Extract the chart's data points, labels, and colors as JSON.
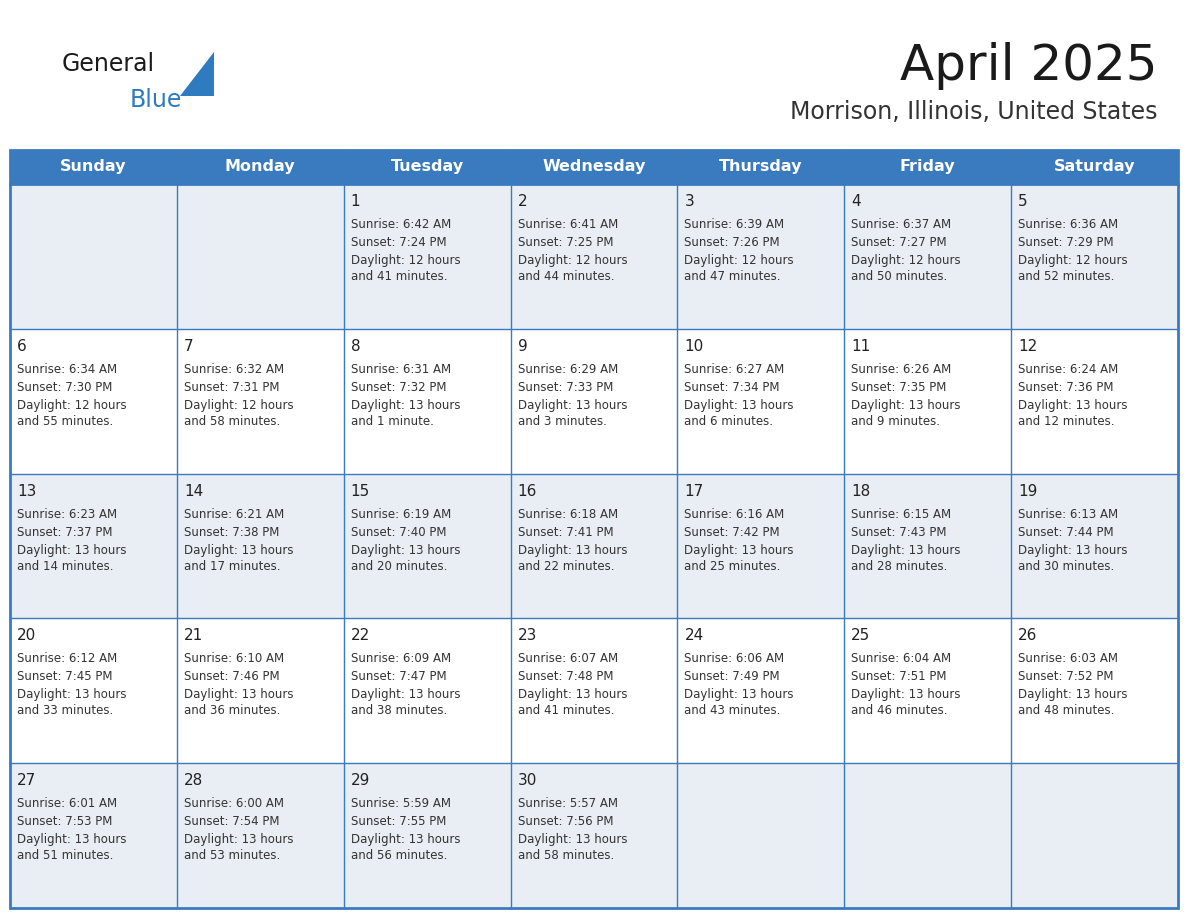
{
  "title": "April 2025",
  "subtitle": "Morrison, Illinois, United States",
  "header_bg": "#3a7abf",
  "header_text_color": "#ffffff",
  "cell_bg_odd": "#e8eef4",
  "cell_bg_even": "#ffffff",
  "border_color": "#3a7abf",
  "day_names": [
    "Sunday",
    "Monday",
    "Tuesday",
    "Wednesday",
    "Thursday",
    "Friday",
    "Saturday"
  ],
  "title_color": "#1a1a1a",
  "subtitle_color": "#333333",
  "logo_general_color": "#1a1a1a",
  "logo_blue_color": "#2e7bbf",
  "weeks": [
    [
      {
        "day": "",
        "sunrise": "",
        "sunset": "",
        "daylight": ""
      },
      {
        "day": "",
        "sunrise": "",
        "sunset": "",
        "daylight": ""
      },
      {
        "day": "1",
        "sunrise": "Sunrise: 6:42 AM",
        "sunset": "Sunset: 7:24 PM",
        "daylight": "Daylight: 12 hours\nand 41 minutes."
      },
      {
        "day": "2",
        "sunrise": "Sunrise: 6:41 AM",
        "sunset": "Sunset: 7:25 PM",
        "daylight": "Daylight: 12 hours\nand 44 minutes."
      },
      {
        "day": "3",
        "sunrise": "Sunrise: 6:39 AM",
        "sunset": "Sunset: 7:26 PM",
        "daylight": "Daylight: 12 hours\nand 47 minutes."
      },
      {
        "day": "4",
        "sunrise": "Sunrise: 6:37 AM",
        "sunset": "Sunset: 7:27 PM",
        "daylight": "Daylight: 12 hours\nand 50 minutes."
      },
      {
        "day": "5",
        "sunrise": "Sunrise: 6:36 AM",
        "sunset": "Sunset: 7:29 PM",
        "daylight": "Daylight: 12 hours\nand 52 minutes."
      }
    ],
    [
      {
        "day": "6",
        "sunrise": "Sunrise: 6:34 AM",
        "sunset": "Sunset: 7:30 PM",
        "daylight": "Daylight: 12 hours\nand 55 minutes."
      },
      {
        "day": "7",
        "sunrise": "Sunrise: 6:32 AM",
        "sunset": "Sunset: 7:31 PM",
        "daylight": "Daylight: 12 hours\nand 58 minutes."
      },
      {
        "day": "8",
        "sunrise": "Sunrise: 6:31 AM",
        "sunset": "Sunset: 7:32 PM",
        "daylight": "Daylight: 13 hours\nand 1 minute."
      },
      {
        "day": "9",
        "sunrise": "Sunrise: 6:29 AM",
        "sunset": "Sunset: 7:33 PM",
        "daylight": "Daylight: 13 hours\nand 3 minutes."
      },
      {
        "day": "10",
        "sunrise": "Sunrise: 6:27 AM",
        "sunset": "Sunset: 7:34 PM",
        "daylight": "Daylight: 13 hours\nand 6 minutes."
      },
      {
        "day": "11",
        "sunrise": "Sunrise: 6:26 AM",
        "sunset": "Sunset: 7:35 PM",
        "daylight": "Daylight: 13 hours\nand 9 minutes."
      },
      {
        "day": "12",
        "sunrise": "Sunrise: 6:24 AM",
        "sunset": "Sunset: 7:36 PM",
        "daylight": "Daylight: 13 hours\nand 12 minutes."
      }
    ],
    [
      {
        "day": "13",
        "sunrise": "Sunrise: 6:23 AM",
        "sunset": "Sunset: 7:37 PM",
        "daylight": "Daylight: 13 hours\nand 14 minutes."
      },
      {
        "day": "14",
        "sunrise": "Sunrise: 6:21 AM",
        "sunset": "Sunset: 7:38 PM",
        "daylight": "Daylight: 13 hours\nand 17 minutes."
      },
      {
        "day": "15",
        "sunrise": "Sunrise: 6:19 AM",
        "sunset": "Sunset: 7:40 PM",
        "daylight": "Daylight: 13 hours\nand 20 minutes."
      },
      {
        "day": "16",
        "sunrise": "Sunrise: 6:18 AM",
        "sunset": "Sunset: 7:41 PM",
        "daylight": "Daylight: 13 hours\nand 22 minutes."
      },
      {
        "day": "17",
        "sunrise": "Sunrise: 6:16 AM",
        "sunset": "Sunset: 7:42 PM",
        "daylight": "Daylight: 13 hours\nand 25 minutes."
      },
      {
        "day": "18",
        "sunrise": "Sunrise: 6:15 AM",
        "sunset": "Sunset: 7:43 PM",
        "daylight": "Daylight: 13 hours\nand 28 minutes."
      },
      {
        "day": "19",
        "sunrise": "Sunrise: 6:13 AM",
        "sunset": "Sunset: 7:44 PM",
        "daylight": "Daylight: 13 hours\nand 30 minutes."
      }
    ],
    [
      {
        "day": "20",
        "sunrise": "Sunrise: 6:12 AM",
        "sunset": "Sunset: 7:45 PM",
        "daylight": "Daylight: 13 hours\nand 33 minutes."
      },
      {
        "day": "21",
        "sunrise": "Sunrise: 6:10 AM",
        "sunset": "Sunset: 7:46 PM",
        "daylight": "Daylight: 13 hours\nand 36 minutes."
      },
      {
        "day": "22",
        "sunrise": "Sunrise: 6:09 AM",
        "sunset": "Sunset: 7:47 PM",
        "daylight": "Daylight: 13 hours\nand 38 minutes."
      },
      {
        "day": "23",
        "sunrise": "Sunrise: 6:07 AM",
        "sunset": "Sunset: 7:48 PM",
        "daylight": "Daylight: 13 hours\nand 41 minutes."
      },
      {
        "day": "24",
        "sunrise": "Sunrise: 6:06 AM",
        "sunset": "Sunset: 7:49 PM",
        "daylight": "Daylight: 13 hours\nand 43 minutes."
      },
      {
        "day": "25",
        "sunrise": "Sunrise: 6:04 AM",
        "sunset": "Sunset: 7:51 PM",
        "daylight": "Daylight: 13 hours\nand 46 minutes."
      },
      {
        "day": "26",
        "sunrise": "Sunrise: 6:03 AM",
        "sunset": "Sunset: 7:52 PM",
        "daylight": "Daylight: 13 hours\nand 48 minutes."
      }
    ],
    [
      {
        "day": "27",
        "sunrise": "Sunrise: 6:01 AM",
        "sunset": "Sunset: 7:53 PM",
        "daylight": "Daylight: 13 hours\nand 51 minutes."
      },
      {
        "day": "28",
        "sunrise": "Sunrise: 6:00 AM",
        "sunset": "Sunset: 7:54 PM",
        "daylight": "Daylight: 13 hours\nand 53 minutes."
      },
      {
        "day": "29",
        "sunrise": "Sunrise: 5:59 AM",
        "sunset": "Sunset: 7:55 PM",
        "daylight": "Daylight: 13 hours\nand 56 minutes."
      },
      {
        "day": "30",
        "sunrise": "Sunrise: 5:57 AM",
        "sunset": "Sunset: 7:56 PM",
        "daylight": "Daylight: 13 hours\nand 58 minutes."
      },
      {
        "day": "",
        "sunrise": "",
        "sunset": "",
        "daylight": ""
      },
      {
        "day": "",
        "sunrise": "",
        "sunset": "",
        "daylight": ""
      },
      {
        "day": "",
        "sunrise": "",
        "sunset": "",
        "daylight": ""
      }
    ]
  ]
}
